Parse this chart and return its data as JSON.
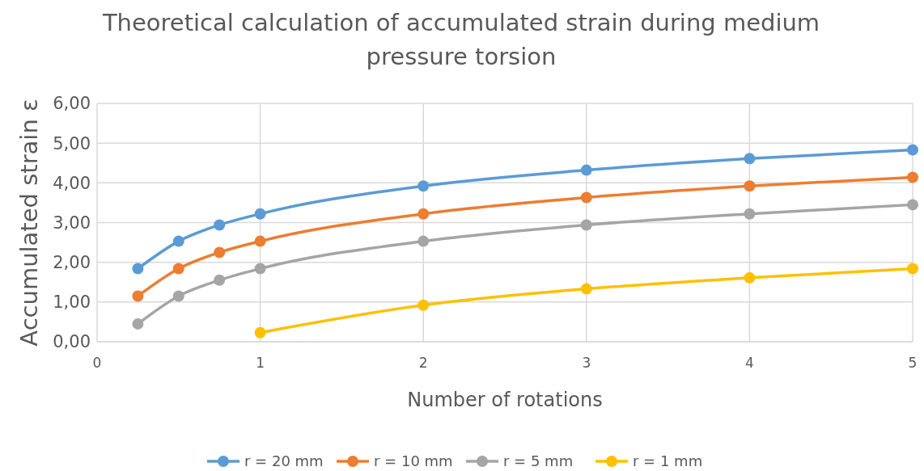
{
  "chart_data": {
    "type": "line",
    "title": "Theoretical calculation of accumulated strain during medium pressure torsion",
    "xlabel": "Number of rotations",
    "ylabel": "Accumulated strain ε",
    "x": [
      0.25,
      0.5,
      0.75,
      1,
      2,
      3,
      4,
      5
    ],
    "series": [
      {
        "name": "r = 20 mm",
        "color": "#5b9bd5",
        "values": [
          1.84,
          2.53,
          2.94,
          3.22,
          3.92,
          4.32,
          4.61,
          4.83
        ]
      },
      {
        "name": "r = 10 mm",
        "color": "#ed7d31",
        "values": [
          1.15,
          1.84,
          2.25,
          2.53,
          3.22,
          3.63,
          3.92,
          4.14
        ]
      },
      {
        "name": "r = 5 mm",
        "color": "#a5a5a5",
        "values": [
          0.45,
          1.15,
          1.55,
          1.84,
          2.53,
          2.94,
          3.22,
          3.45
        ]
      },
      {
        "name": "r = 1 mm",
        "color": "#ffc000",
        "values": [
          null,
          null,
          null,
          0.23,
          0.92,
          1.33,
          1.61,
          1.84
        ]
      }
    ],
    "xlim": [
      0,
      5
    ],
    "xticks": [
      0,
      1,
      2,
      3,
      4,
      5
    ],
    "ylim": [
      0,
      6
    ],
    "yticks": [
      {
        "value": 0,
        "label": "0,00"
      },
      {
        "value": 1,
        "label": "1,00"
      },
      {
        "value": 2,
        "label": "2,00"
      },
      {
        "value": 3,
        "label": "3,00"
      },
      {
        "value": 4,
        "label": "4,00"
      },
      {
        "value": 5,
        "label": "5,00"
      },
      {
        "value": 6,
        "label": "6,00"
      }
    ],
    "grid": true,
    "legend": "bottom",
    "marker": "circle",
    "line_style": "solid"
  }
}
